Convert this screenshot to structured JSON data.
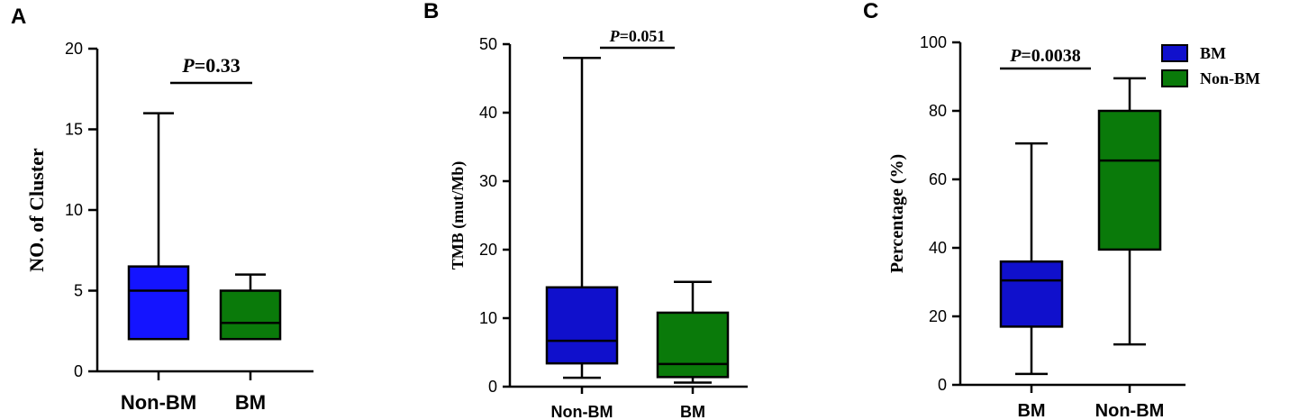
{
  "colors": {
    "BM": "#1010cc",
    "Non-BM": "#0a7a0a",
    "Non-BM-A": "#1414ff"
  },
  "chart_data": [
    {
      "panel": "A",
      "type": "box",
      "ylabel": "NO. of Cluster",
      "ylim": [
        0,
        20
      ],
      "yticks": [
        0,
        5,
        10,
        15,
        20
      ],
      "categories": [
        "Non-BM",
        "BM"
      ],
      "boxes": [
        {
          "category": "Non-BM",
          "color_key": "Non-BM-A",
          "min": 2,
          "q1": 2,
          "median": 5,
          "q3": 6.5,
          "max": 16
        },
        {
          "category": "BM",
          "color_key": "Non-BM",
          "min": 2,
          "q1": 2,
          "median": 3,
          "q3": 5,
          "max": 6
        }
      ],
      "annotation": {
        "p_label": "P",
        "p_value": "=0.33"
      },
      "legend": []
    },
    {
      "panel": "B",
      "type": "box",
      "ylabel": "TMB (mut/Mb)",
      "ylim": [
        0,
        50
      ],
      "yticks": [
        0,
        10,
        20,
        30,
        40,
        50
      ],
      "categories": [
        "Non-BM",
        "BM"
      ],
      "boxes": [
        {
          "category": "Non-BM",
          "color_key": "BM",
          "min": 1.3,
          "q1": 3.4,
          "median": 6.7,
          "q3": 14.5,
          "max": 48
        },
        {
          "category": "BM",
          "color_key": "Non-BM",
          "min": 0.6,
          "q1": 1.4,
          "median": 3.3,
          "q3": 10.8,
          "max": 15.3
        }
      ],
      "annotation": {
        "p_label": "P",
        "p_value": "=0.051"
      },
      "legend": []
    },
    {
      "panel": "C",
      "type": "box",
      "ylabel": "Percentage (%)",
      "ylim": [
        0,
        100
      ],
      "yticks": [
        0,
        20,
        40,
        60,
        80,
        100
      ],
      "categories": [
        "BM",
        "Non-BM"
      ],
      "boxes": [
        {
          "category": "BM",
          "color_key": "BM",
          "min": 3.2,
          "q1": 17,
          "median": 30.5,
          "q3": 36,
          "max": 70.5
        },
        {
          "category": "Non-BM",
          "color_key": "Non-BM",
          "min": 11.8,
          "q1": 39.5,
          "median": 65.5,
          "q3": 80,
          "max": 89.5
        }
      ],
      "annotation": {
        "p_label": "P",
        "p_value": "=0.0038"
      },
      "legend": [
        {
          "label": "BM",
          "color_key": "BM"
        },
        {
          "label": "Non-BM",
          "color_key": "Non-BM"
        }
      ]
    }
  ]
}
